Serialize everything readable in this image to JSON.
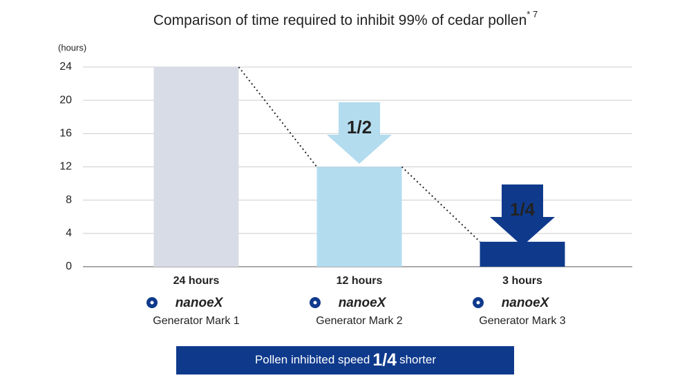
{
  "chart_data": {
    "type": "bar",
    "title": "Comparison of time required to inhibit 99% of cedar pollen",
    "title_note": "* 7",
    "y_label": "(hours)",
    "categories": [
      "Generator Mark 1",
      "Generator Mark 2",
      "Generator Mark 3"
    ],
    "brand": "nanoeX",
    "values": [
      24,
      12,
      3
    ],
    "value_labels": [
      "24 hours",
      "12 hours",
      "3 hours"
    ],
    "colors": [
      "#d8dce6",
      "#b3dcef",
      "#0f3a8c"
    ],
    "ylim": [
      0,
      24
    ],
    "yticks": [
      0,
      4,
      8,
      12,
      16,
      20,
      24
    ],
    "grid": true,
    "annotations": [
      "1/2",
      "1/4"
    ],
    "banner": {
      "before": "Pollen inhibited speed",
      "emphasis": "1/4",
      "after": "shorter"
    }
  }
}
